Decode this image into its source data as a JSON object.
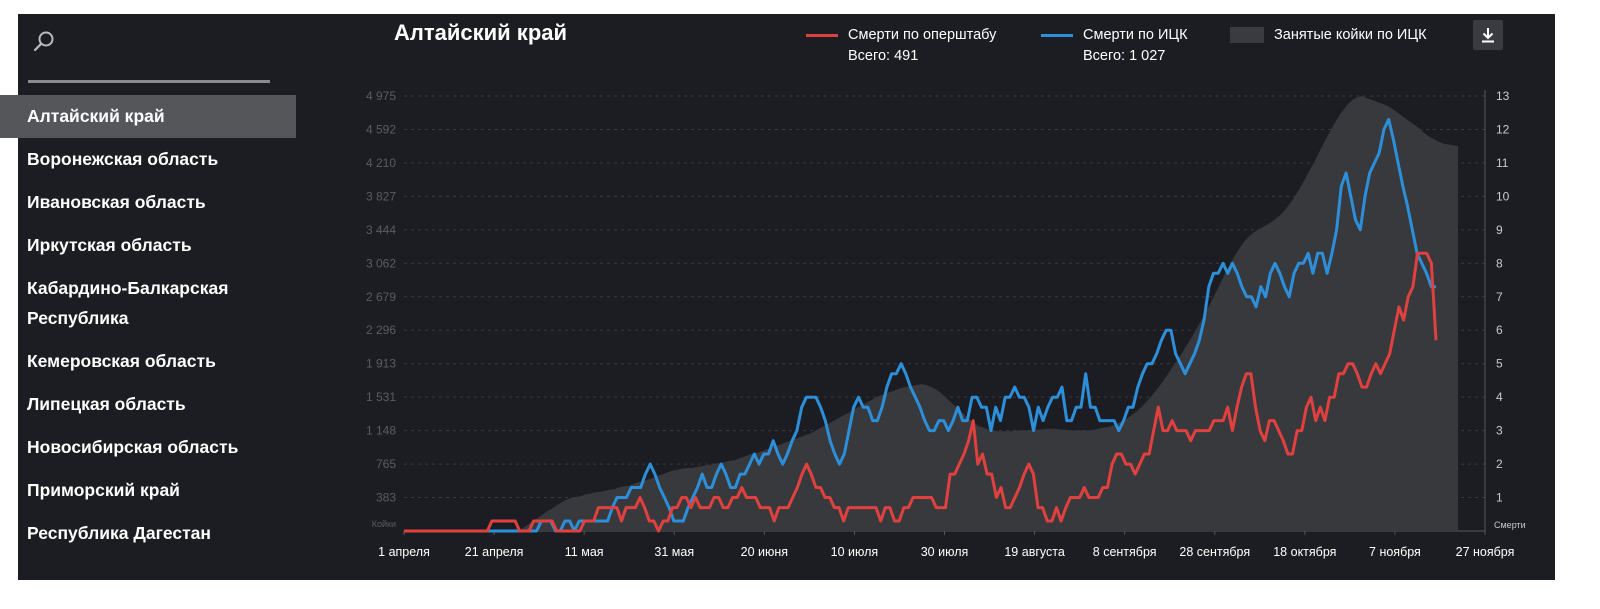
{
  "sidebar": {
    "items": [
      {
        "label": "Алтайский край",
        "active": true
      },
      {
        "label": "Воронежская область"
      },
      {
        "label": "Ивановская область"
      },
      {
        "label": "Иркутская область"
      },
      {
        "label": "Кабардино-Балкарская Республика"
      },
      {
        "label": "Кемеровская область"
      },
      {
        "label": "Липецкая область"
      },
      {
        "label": "Новосибирская область"
      },
      {
        "label": "Приморский край"
      },
      {
        "label": "Республика Дагестан"
      }
    ]
  },
  "icons": {
    "search": "search-icon",
    "download": "download-icon"
  },
  "colors": {
    "red": "#e0413f",
    "blue": "#2d8fd9",
    "area": "#38393d",
    "background": "#1c1d22"
  },
  "chart_data": {
    "type": "line",
    "title": "Алтайский край",
    "left_axis": {
      "label": "Койки",
      "ticks": [
        "4 975",
        "4 592",
        "4 210",
        "3 827",
        "3 444",
        "3 062",
        "2 679",
        "2 296",
        "1 913",
        "1 531",
        "1 148",
        "765",
        "383"
      ],
      "max": 4975
    },
    "right_axis": {
      "label": "Смерти",
      "ticks": [
        "13",
        "12",
        "11",
        "10",
        "9",
        "8",
        "7",
        "6",
        "5",
        "4",
        "3",
        "2",
        "1"
      ],
      "max": 13
    },
    "x_axis": {
      "ticks": [
        "1 апреля",
        "21 апреля",
        "11 мая",
        "31 мая",
        "20 июня",
        "10 июля",
        "30 июля",
        "19 августа",
        "8 сентября",
        "28 сентября",
        "18 октября",
        "7 ноября",
        "27 ноября"
      ],
      "start": "1 апреля",
      "end": "27 ноября"
    },
    "legend_position": "top-right",
    "grid": true,
    "series": [
      {
        "name": "Смерти по оперштабу",
        "total_label": "Всего: 491",
        "axis": "right",
        "color": "#e0413f",
        "values": [
          0,
          0,
          0,
          0,
          0,
          0,
          0,
          0,
          0,
          0,
          0,
          0,
          0,
          0,
          0,
          0,
          0,
          0,
          0,
          0.3,
          0.3,
          0.3,
          0.3,
          0.3,
          0.3,
          0,
          0,
          0,
          0.3,
          0.3,
          0.3,
          0.3,
          0.3,
          0,
          0,
          0,
          0,
          0,
          0,
          0.3,
          0.3,
          0.3,
          0.7,
          0.7,
          0.7,
          0.7,
          0.7,
          0.3,
          0.7,
          0.7,
          0.7,
          1,
          0.7,
          0.3,
          0.3,
          0,
          0.3,
          0.3,
          0.7,
          0.7,
          1,
          1,
          0.7,
          1,
          0.7,
          0.7,
          0.7,
          1,
          1,
          0.7,
          0.7,
          1,
          1,
          1.3,
          1,
          1,
          1,
          0.7,
          0.7,
          0.7,
          0.3,
          0.7,
          0.7,
          0.7,
          1,
          1.3,
          1.7,
          2,
          1.7,
          1.3,
          1.3,
          1,
          1,
          0.7,
          0.7,
          0.3,
          0.7,
          0.7,
          0.7,
          0.7,
          0.7,
          0.7,
          0.7,
          0.3,
          0.7,
          0.7,
          0.3,
          0.3,
          0.7,
          0.7,
          1,
          1,
          1,
          1,
          1,
          0.7,
          0.7,
          0.7,
          1.7,
          1.7,
          2,
          2.3,
          2.7,
          3.3,
          2,
          2.3,
          1.7,
          1.7,
          1,
          1.3,
          0.7,
          0.7,
          1,
          1.3,
          1.7,
          2,
          1.7,
          0.7,
          0.7,
          0.3,
          0.3,
          0.7,
          0.3,
          0.7,
          1,
          1,
          1,
          1.3,
          1,
          1,
          1,
          1.3,
          1.3,
          2,
          2.3,
          2.3,
          2,
          2,
          1.7,
          2,
          2.3,
          2.3,
          3,
          3.7,
          3,
          3,
          3.3,
          3,
          3,
          3,
          2.7,
          3,
          3,
          3,
          3,
          3.3,
          3.3,
          3.3,
          3.7,
          3,
          3.7,
          4.3,
          4.7,
          4.7,
          3.7,
          3,
          2.7,
          3.3,
          3.3,
          3,
          2.7,
          2.3,
          2.3,
          3,
          3,
          3.7,
          4,
          3.3,
          3.7,
          3.3,
          4,
          4,
          4.7,
          4.7,
          5,
          5,
          4.7,
          4.3,
          4.3,
          4.7,
          5,
          4.7,
          5,
          5.3,
          6,
          6.7,
          6.3,
          7,
          7.3,
          8.3,
          8.3,
          8.3,
          8,
          5.7
        ]
      },
      {
        "name": "Смерти по ИЦК",
        "total_label": "Всего: 1 027",
        "axis": "right",
        "color": "#2d8fd9",
        "values": [
          0,
          0,
          0,
          0,
          0,
          0,
          0,
          0,
          0,
          0,
          0,
          0,
          0,
          0,
          0,
          0,
          0,
          0,
          0,
          0,
          0,
          0,
          0,
          0,
          0,
          0,
          0,
          0,
          0,
          0.3,
          0.3,
          0.3,
          0,
          0,
          0.3,
          0.3,
          0,
          0.3,
          0.3,
          0.3,
          0.3,
          0.3,
          0.3,
          0.3,
          0.7,
          1,
          1,
          1,
          1.3,
          1.3,
          1.3,
          1.7,
          2,
          1.7,
          1.3,
          1,
          0.7,
          0.3,
          0.3,
          0.3,
          0.7,
          1,
          1.3,
          1.7,
          1.3,
          1.3,
          1.7,
          2,
          1.7,
          1.3,
          1.3,
          1.7,
          1.7,
          2,
          2.3,
          2,
          2.3,
          2.3,
          2.7,
          2.3,
          2,
          2.3,
          2.7,
          3,
          3.7,
          4,
          4,
          4,
          3.7,
          3.3,
          2.7,
          2.3,
          2,
          2.3,
          3,
          3.7,
          4,
          3.7,
          3.7,
          3.3,
          3.3,
          3.7,
          4.3,
          4.7,
          4.7,
          5,
          4.7,
          4.3,
          4,
          3.7,
          3.3,
          3,
          3,
          3.3,
          3.3,
          3,
          3.3,
          3.7,
          3.3,
          3.3,
          4,
          4,
          3.7,
          3.7,
          3,
          3.7,
          3.3,
          4,
          4,
          4.3,
          4,
          4,
          3.7,
          3,
          3.7,
          3.3,
          3.7,
          4,
          4,
          4.3,
          3.3,
          3.3,
          3.7,
          3.7,
          4.7,
          3.7,
          3.7,
          3.3,
          3.3,
          3.3,
          3.3,
          3,
          3.3,
          3.7,
          3.7,
          4.3,
          4.7,
          5,
          5,
          5.3,
          5.7,
          6,
          6,
          5.3,
          5,
          4.7,
          5,
          5.3,
          5.7,
          6.3,
          7.3,
          7.7,
          7.7,
          8,
          7.7,
          8,
          7.7,
          7.3,
          7,
          7,
          6.7,
          7.3,
          7,
          7.7,
          8,
          7.7,
          7.3,
          7,
          7.7,
          8,
          8,
          8.3,
          7.7,
          8.3,
          8.3,
          7.7,
          8.3,
          9,
          10.3,
          10.7,
          10,
          9.3,
          9,
          10,
          10.7,
          11,
          11.3,
          12,
          12.3,
          11.7,
          11,
          10.3,
          9.7,
          9,
          8.3,
          8,
          7.7,
          7.3,
          7.3
        ]
      },
      {
        "name": "Занятые койки по ИЦК",
        "axis": "left",
        "color": "#38393d",
        "values": [
          0,
          0,
          0,
          0,
          0,
          0,
          0,
          0,
          0,
          0,
          0,
          0,
          0,
          0,
          0,
          0,
          0,
          0,
          0,
          0,
          0,
          0,
          0,
          0,
          0,
          40,
          80,
          120,
          150,
          190,
          230,
          260,
          300,
          330,
          360,
          380,
          390,
          400,
          420,
          430,
          440,
          450,
          460,
          470,
          480,
          500,
          510,
          520,
          540,
          560,
          570,
          590,
          610,
          630,
          650,
          670,
          690,
          700,
          710,
          720,
          720,
          730,
          740,
          750,
          760,
          770,
          780,
          790,
          800,
          810,
          830,
          850,
          870,
          890,
          900,
          920,
          940,
          960,
          980,
          1000,
          1020,
          1040,
          1060,
          1080,
          1100,
          1120,
          1150,
          1180,
          1210,
          1240,
          1270,
          1300,
          1330,
          1360,
          1390,
          1420,
          1450,
          1480,
          1510,
          1540,
          1560,
          1580,
          1600,
          1620,
          1640,
          1650,
          1660,
          1670,
          1680,
          1670,
          1650,
          1620,
          1580,
          1530,
          1480,
          1430,
          1380,
          1330,
          1280,
          1240,
          1200,
          1180,
          1160,
          1150,
          1140,
          1140,
          1140,
          1140,
          1150,
          1150,
          1150,
          1160,
          1160,
          1160,
          1170,
          1170,
          1170,
          1160,
          1160,
          1150,
          1150,
          1150,
          1150,
          1150,
          1160,
          1170,
          1180,
          1190,
          1210,
          1230,
          1260,
          1290,
          1330,
          1370,
          1420,
          1480,
          1540,
          1610,
          1680,
          1760,
          1840,
          1920,
          2000,
          2090,
          2180,
          2270,
          2370,
          2470,
          2570,
          2680,
          2790,
          2900,
          3010,
          3110,
          3200,
          3280,
          3350,
          3400,
          3440,
          3470,
          3500,
          3530,
          3570,
          3620,
          3680,
          3750,
          3830,
          3920,
          4020,
          4120,
          4220,
          4330,
          4440,
          4540,
          4640,
          4730,
          4810,
          4880,
          4930,
          4960,
          4975,
          4950,
          4930,
          4910,
          4890,
          4870,
          4840,
          4800,
          4760,
          4720,
          4680,
          4640,
          4600,
          4550,
          4510,
          4480,
          4450,
          4430,
          4420,
          4410,
          4400
        ]
      }
    ]
  }
}
